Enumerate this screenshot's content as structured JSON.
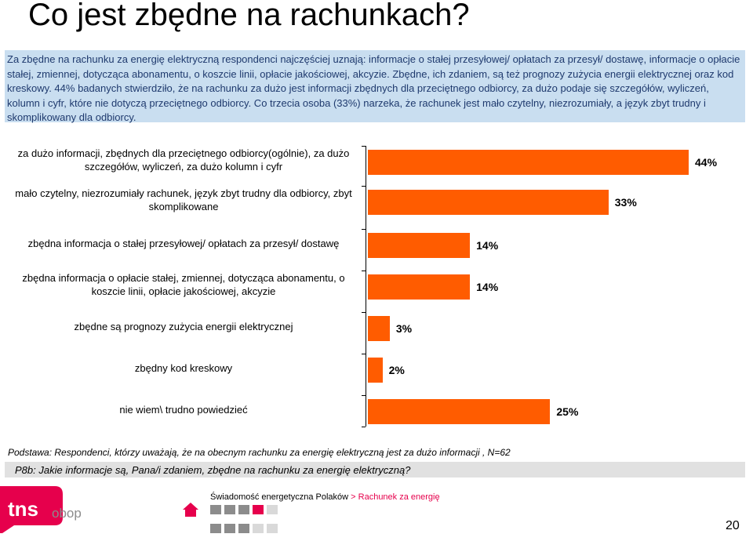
{
  "page": {
    "title": "Co jest zbędne na rachunkach?",
    "summary": "Za zbędne na rachunku za energię elektryczną respondenci najczęściej uznają: informacje o stałej przesyłowej/ opłatach za przesył/ dostawę, informacje o opłacie stałej, zmiennej, dotycząca abonamentu, o koszcie linii, opłacie jakościowej, akcyzie. Zbędne, ich zdaniem, są też prognozy zużycia energii elektrycznej oraz kod kreskowy. 44% badanych stwierdziło, że na rachunku za dużo jest informacji zbędnych dla przeciętnego odbiorcy, za dużo podaje się szczegółów, wyliczeń, kolumn i cyfr, które nie dotyczą przeciętnego odbiorcy. Co trzecia osoba (33%) narzeka, że rachunek jest mało czytelny, niezrozumiały, a język zbyt trudny i skomplikowany dla odbiorcy.",
    "basis": "Podstawa: Respondenci, którzy uważają, że na obecnym rachunku za energię elektryczną jest za dużo informacji , N=62",
    "question": "P8b: Jakie informacje są, Pana/i zdaniem, zbędne na rachunku za energię elektryczną?",
    "logo_text": "tns",
    "logo_sub": "obop",
    "footer_title": "Świadomość energetyczna Polaków",
    "footer_crumb": "> Rachunek za energię",
    "page_number": "20"
  },
  "colors": {
    "bar": "#ff5c00",
    "summary_bg": "#c9def0",
    "summary_text": "#1f3a6e",
    "accent": "#e6004c"
  },
  "chart_data": {
    "type": "bar",
    "orientation": "horizontal",
    "title": "",
    "xlabel": "",
    "ylabel": "",
    "xlim": [
      0,
      44
    ],
    "categories": [
      "za dużo informacji, zbędnych  dla przeciętnego odbiorcy(ogólnie), za dużo szczegółów, wyliczeń, za dużo kolumn i cyfr",
      "mało czytelny, niezrozumiały rachunek, język zbyt trudny dla odbiorcy, zbyt skomplikowane",
      "zbędna informacja o stałej przesyłowej/ opłatach za przesył/ dostawę",
      "zbędna informacja o opłacie stałej, zmiennej, dotycząca abonamentu, o koszcie linii, opłacie jakościowej, akcyzie",
      "zbędne są prognozy zużycia energii elektrycznej",
      "zbędny kod kreskowy",
      "nie wiem\\ trudno powiedzieć"
    ],
    "values": [
      44,
      33,
      14,
      14,
      3,
      2,
      25
    ],
    "value_labels": [
      "44%",
      "33%",
      "14%",
      "14%",
      "3%",
      "2%",
      "25%"
    ]
  }
}
